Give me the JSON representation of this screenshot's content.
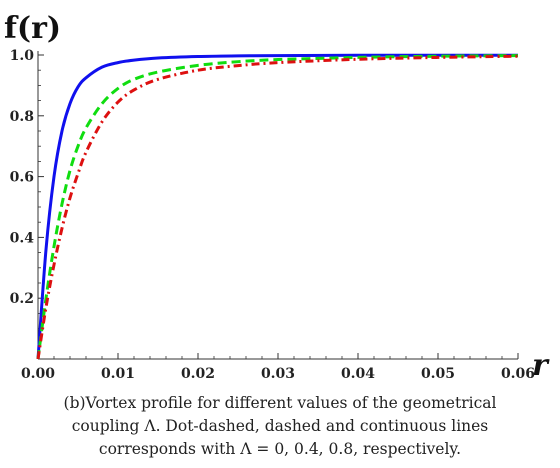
{
  "chart_data": {
    "type": "line",
    "ylabel": "f(r)",
    "xlabel": "r",
    "xlim": [
      0,
      0.06
    ],
    "ylim": [
      0,
      1.0
    ],
    "x_ticks": [
      "0.00",
      "0.01",
      "0.02",
      "0.03",
      "0.04",
      "0.05",
      "0.06"
    ],
    "y_ticks": [
      "0.2",
      "0.4",
      "0.6",
      "0.8",
      "1.0"
    ],
    "x_tick_values": [
      0,
      0.01,
      0.02,
      0.03,
      0.04,
      0.05,
      0.06
    ],
    "y_tick_values": [
      0.2,
      0.4,
      0.6,
      0.8,
      1.0
    ],
    "series": [
      {
        "style": "continuous",
        "color": "#1010ee",
        "x": [
          0,
          0.001,
          0.002,
          0.003,
          0.004,
          0.005,
          0.006,
          0.008,
          0.01,
          0.012,
          0.015,
          0.02,
          0.025,
          0.03,
          0.04,
          0.05,
          0.06
        ],
        "y": [
          0,
          0.36,
          0.6,
          0.75,
          0.84,
          0.895,
          0.925,
          0.96,
          0.975,
          0.983,
          0.99,
          0.995,
          0.997,
          0.998,
          0.999,
          0.999,
          0.999
        ]
      },
      {
        "style": "dashed",
        "color": "#10dd10",
        "x": [
          0,
          0.001,
          0.002,
          0.003,
          0.004,
          0.005,
          0.006,
          0.008,
          0.01,
          0.012,
          0.015,
          0.02,
          0.025,
          0.03,
          0.04,
          0.05,
          0.06
        ],
        "y": [
          0,
          0.2,
          0.37,
          0.51,
          0.62,
          0.7,
          0.76,
          0.84,
          0.89,
          0.92,
          0.944,
          0.966,
          0.978,
          0.985,
          0.992,
          0.996,
          0.998
        ]
      },
      {
        "style": "dot-dashed",
        "color": "#dd1010",
        "x": [
          0,
          0.001,
          0.002,
          0.003,
          0.004,
          0.005,
          0.006,
          0.008,
          0.01,
          0.012,
          0.015,
          0.02,
          0.025,
          0.03,
          0.04,
          0.05,
          0.06
        ],
        "y": [
          0,
          0.17,
          0.31,
          0.43,
          0.53,
          0.61,
          0.68,
          0.78,
          0.845,
          0.885,
          0.92,
          0.95,
          0.965,
          0.975,
          0.986,
          0.992,
          0.996
        ]
      }
    ]
  },
  "caption": {
    "line1": "(b)Vortex profile for different values of the geometrical",
    "line2": "coupling Λ. Dot-dashed, dashed and continuous lines",
    "line3": "corresponds with Λ = 0, 0.4, 0.8, respectively."
  }
}
